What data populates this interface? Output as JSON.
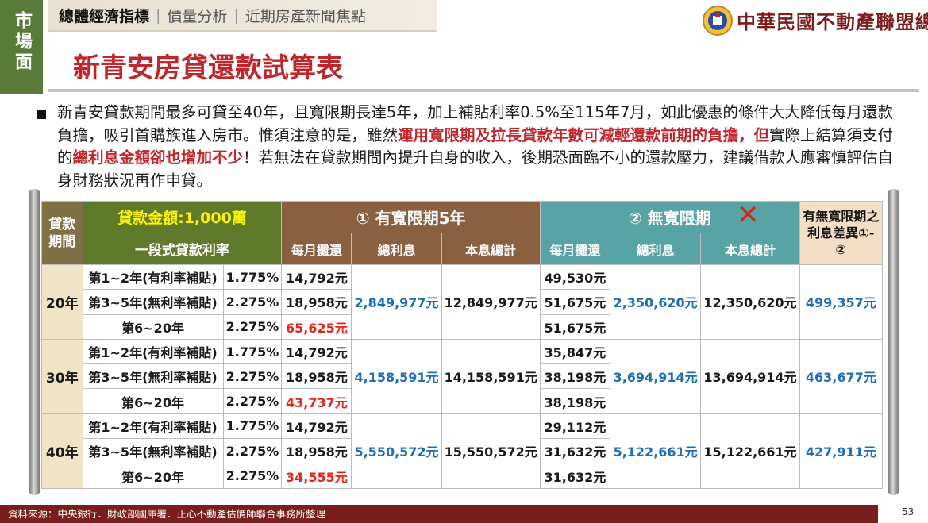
{
  "side_tab": "市場面",
  "nav": {
    "active": "總體經濟指標",
    "items": [
      "價量分析",
      "近期房產新聞焦點"
    ]
  },
  "org_name": "中華民國不動產聯盟總會",
  "title": "新青安房貸還款試算表",
  "paragraph": {
    "p1": "新青安貸款期間最多可貸至40年，且寬限期長達5年，加上補貼利率0.5%至115年7月，如此優惠的條件大大降低每月還款負擔，吸引首購族進入房市。惟須注意的是，雖然",
    "h1": "運用寬限期及拉長貸款年數可減輕還款前期的負擔，但",
    "p2": "實際上結算須支付的",
    "h2": "總利息金額卻也增加不少",
    "p3": "！若無法在貸款期間內提升自身的收入，後期恐面臨不小的還款壓力，建議借款人應審慎評估自身財務狀況再作申貸。"
  },
  "table": {
    "term_header": "貸款期間",
    "amount_header": "貸款金額:1,000萬",
    "rate_header": "一段式貸款利率",
    "grace_header": "① 有寬限期5年",
    "nograce_header": "② 無寬限期",
    "diff_header": "有無寬限期之利息差異①-②",
    "cross_mark": "✕",
    "sub": {
      "monthly": "每月攤還",
      "interest": "總利息",
      "total": "本息總計"
    },
    "groups": [
      {
        "term": "20年",
        "rows": [
          {
            "period": "第1~2年(有利率補貼)",
            "rate": "1.775%",
            "grace_monthly": "14,792元",
            "nograce_monthly": "49,530元"
          },
          {
            "period": "第3~5年(無利率補貼)",
            "rate": "2.275%",
            "grace_monthly": "18,958元",
            "nograce_monthly": "51,675元"
          },
          {
            "period": "第6~20年",
            "rate": "2.275%",
            "grace_monthly": "65,625元",
            "nograce_monthly": "51,675元"
          }
        ],
        "grace_interest": "2,849,977元",
        "grace_total": "12,849,977元",
        "nograce_interest": "2,350,620元",
        "nograce_total": "12,350,620元",
        "diff": "499,357元"
      },
      {
        "term": "30年",
        "rows": [
          {
            "period": "第1~2年(有利率補貼)",
            "rate": "1.775%",
            "grace_monthly": "14,792元",
            "nograce_monthly": "35,847元"
          },
          {
            "period": "第3~5年(無利率補貼)",
            "rate": "2.275%",
            "grace_monthly": "18,958元",
            "nograce_monthly": "38,198元"
          },
          {
            "period": "第6~20年",
            "rate": "2.275%",
            "grace_monthly": "43,737元",
            "nograce_monthly": "38,198元"
          }
        ],
        "grace_interest": "4,158,591元",
        "grace_total": "14,158,591元",
        "nograce_interest": "3,694,914元",
        "nograce_total": "13,694,914元",
        "diff": "463,677元"
      },
      {
        "term": "40年",
        "rows": [
          {
            "period": "第1~2年(有利率補貼)",
            "rate": "1.775%",
            "grace_monthly": "14,792元",
            "nograce_monthly": "29,112元"
          },
          {
            "period": "第3~5年(無利率補貼)",
            "rate": "2.275%",
            "grace_monthly": "18,958元",
            "nograce_monthly": "31,632元"
          },
          {
            "period": "第6~20年",
            "rate": "2.275%",
            "grace_monthly": "34,555元",
            "nograce_monthly": "31,632元"
          }
        ],
        "grace_interest": "5,550,572元",
        "grace_total": "15,550,572元",
        "nograce_interest": "5,122,661元",
        "nograce_total": "15,122,661元",
        "diff": "427,911元"
      }
    ]
  },
  "footer": "資料來源：中央銀行．財政部國庫署．正心不動產估價師聯合事務所整理",
  "page_number": "53",
  "colors": {
    "accent_red": "#c0272d",
    "brand_maroon": "#7a1d1d",
    "olive": "#5f7a2b",
    "teal": "#58a3a3",
    "brown": "#8a6040",
    "value_blue": "#1f6fb5"
  }
}
